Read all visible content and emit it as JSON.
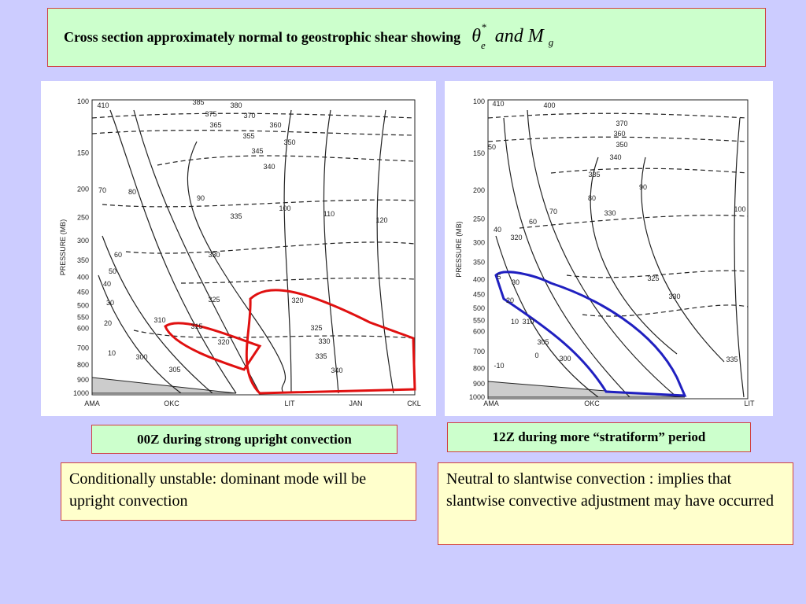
{
  "header": {
    "title": "Cross section approximately normal to geostrophic shear showing",
    "math": {
      "theta": "θ",
      "sup": "*",
      "sub": "e",
      "and": "and",
      "M": "M",
      "g": "g"
    }
  },
  "panels": [
    {
      "y_axis_label": "PRESSURE (MB)",
      "pressure_levels": [
        "100",
        "150",
        "200",
        "250",
        "300",
        "350",
        "400",
        "450",
        "500",
        "550",
        "600",
        "700",
        "800",
        "900",
        "1000"
      ],
      "stations": [
        "AMA",
        "OKC",
        "LIT",
        "JAN",
        "CKL"
      ],
      "contour_labels": [
        "410",
        "385",
        "380",
        "375",
        "370",
        "365",
        "360",
        "355",
        "350",
        "345",
        "340",
        "335",
        "330",
        "325",
        "320",
        "325",
        "330",
        "335",
        "340",
        "70",
        "80",
        "90",
        "100",
        "110",
        "120",
        "60",
        "50",
        "40",
        "30",
        "20",
        "10",
        "300",
        "305",
        "310",
        "315",
        "320"
      ],
      "caption": "00Z during strong upright convection",
      "note": "Conditionally unstable: dominant mode will be upright convection"
    },
    {
      "y_axis_label": "PRESSURE (MB)",
      "pressure_levels": [
        "100",
        "150",
        "200",
        "250",
        "300",
        "350",
        "400",
        "450",
        "500",
        "550",
        "600",
        "700",
        "800",
        "900",
        "1000"
      ],
      "stations": [
        "AMA",
        "OKC",
        "LIT"
      ],
      "contour_labels": [
        "410",
        "400",
        "370",
        "360",
        "350",
        "340",
        "335",
        "90",
        "80",
        "70",
        "60",
        "40",
        "50",
        "330",
        "320",
        "325",
        "330",
        "335",
        "100",
        "30",
        "20",
        "10",
        "310",
        "305",
        "300",
        "0",
        "-10",
        "5"
      ],
      "caption": "12Z during more “stratiform” period",
      "note": "Neutral to slantwise convection : implies that slantwise convective adjustment may have occurred"
    }
  ]
}
